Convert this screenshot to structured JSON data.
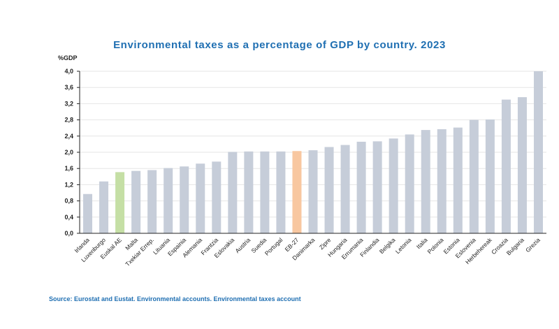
{
  "chart_data": {
    "type": "bar",
    "title": "Environmental taxes as a percentage of GDP by country. 2023",
    "ylabel": "%GDP",
    "xlabel": "",
    "ylim": [
      0,
      4.0
    ],
    "yticks": [
      "0,0",
      "0,4",
      "0,8",
      "1,2",
      "1,6",
      "2,0",
      "2,4",
      "2,8",
      "3,2",
      "3,6",
      "4,0"
    ],
    "categories": [
      "Irlanda",
      "Luxenburgo",
      "Euskal AE",
      "Malta",
      "Txekiar Errep.",
      "Lituania",
      "Espainia",
      "Alemania",
      "Frantzia",
      "Eslovakia",
      "Austria",
      "Suedia",
      "Portugal",
      "EB-27",
      "Danimarka",
      "Zipre",
      "Hungaria",
      "Errumania",
      "Finlandia",
      "Belgika",
      "Letonia",
      "Italia",
      "Polonia",
      "Estonia",
      "Eslovenia",
      "Herbehereak",
      "Croazia",
      "Bulgaria",
      "Grezia"
    ],
    "values": [
      0.97,
      1.28,
      1.51,
      1.54,
      1.56,
      1.61,
      1.65,
      1.72,
      1.77,
      2.01,
      2.02,
      2.02,
      2.02,
      2.03,
      2.05,
      2.13,
      2.18,
      2.26,
      2.27,
      2.34,
      2.44,
      2.55,
      2.57,
      2.61,
      2.8,
      2.81,
      3.3,
      3.36,
      4.0
    ],
    "highlight": {
      "Euskal AE": "#c5dfa5",
      "EB-27": "#f8c7a0"
    },
    "bar_color": "#c6cdd9",
    "grid": true,
    "legend": "none"
  },
  "source": "Source: Eurostat and Eustat. Environmental accounts. Environmental taxes account",
  "colors": {
    "title": "#1f6fb2",
    "source": "#1f6fb2",
    "axis": "#222222",
    "grid": "#e6e6e6"
  }
}
